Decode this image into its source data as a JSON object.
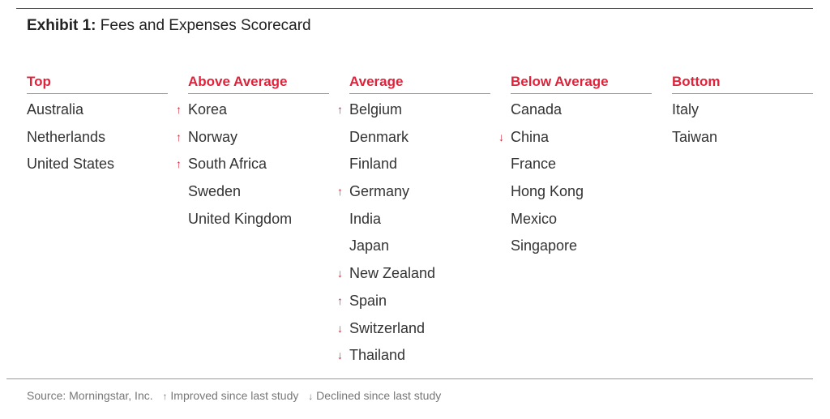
{
  "title": {
    "label": "Exhibit 1:",
    "text": "Fees and Expenses Scorecard"
  },
  "columns": [
    {
      "header": "Top",
      "items": [
        {
          "name": "Australia",
          "trend": ""
        },
        {
          "name": "Netherlands",
          "trend": ""
        },
        {
          "name": "United States",
          "trend": ""
        }
      ]
    },
    {
      "header": "Above Average",
      "items": [
        {
          "name": "Korea",
          "trend": "↑"
        },
        {
          "name": "Norway",
          "trend": "↑"
        },
        {
          "name": "South Africa",
          "trend": "↑"
        },
        {
          "name": "Sweden",
          "trend": ""
        },
        {
          "name": "United Kingdom",
          "trend": ""
        }
      ]
    },
    {
      "header": "Average",
      "items": [
        {
          "name": "Belgium",
          "trend": "↑"
        },
        {
          "name": "Denmark",
          "trend": ""
        },
        {
          "name": "Finland",
          "trend": ""
        },
        {
          "name": "Germany",
          "trend": "↑"
        },
        {
          "name": "India",
          "trend": ""
        },
        {
          "name": "Japan",
          "trend": ""
        },
        {
          "name": "New Zealand",
          "trend": "↓"
        },
        {
          "name": "Spain",
          "trend": "↑"
        },
        {
          "name": "Switzerland",
          "trend": "↓"
        },
        {
          "name": "Thailand",
          "trend": "↓"
        }
      ]
    },
    {
      "header": "Below Average",
      "items": [
        {
          "name": "Canada",
          "trend": ""
        },
        {
          "name": "China",
          "trend": "↓"
        },
        {
          "name": "France",
          "trend": ""
        },
        {
          "name": "Hong Kong",
          "trend": ""
        },
        {
          "name": "Mexico",
          "trend": ""
        },
        {
          "name": "Singapore",
          "trend": ""
        }
      ]
    },
    {
      "header": "Bottom",
      "items": [
        {
          "name": "Italy",
          "trend": ""
        },
        {
          "name": "Taiwan",
          "trend": ""
        }
      ]
    }
  ],
  "footer": {
    "source": "Source: Morningstar, Inc.",
    "improved_arrow": "↑",
    "improved_label": "Improved since last study",
    "declined_arrow": "↓",
    "declined_label": "Declined since last study"
  },
  "colors": {
    "accent": "#e0223a",
    "text": "#333333",
    "muted": "#777777"
  }
}
